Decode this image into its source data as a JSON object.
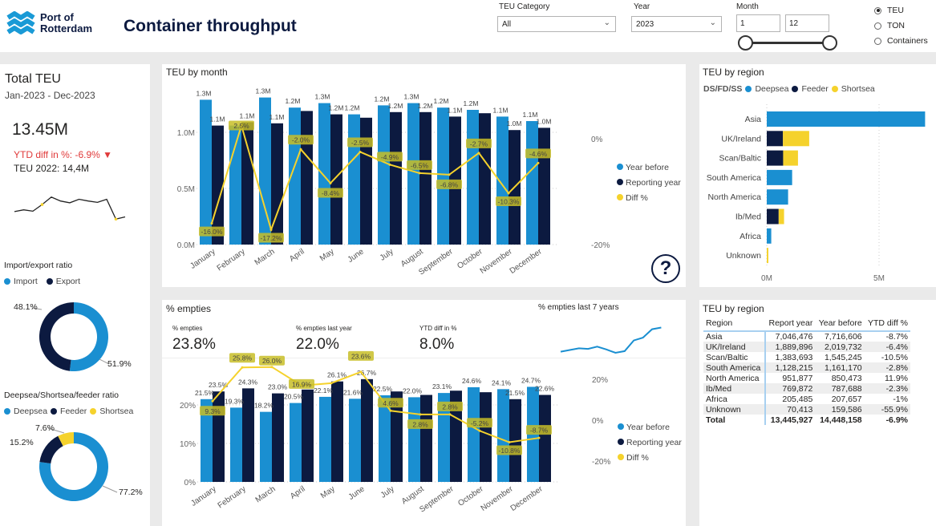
{
  "colors": {
    "year_before": "#1a8fd1",
    "reporting_year": "#0c1a40",
    "diff": "#f5d22c",
    "negative": "#e03a3a",
    "background": "#eaeaea"
  },
  "header": {
    "logo_text_1": "Port of",
    "logo_text_2": "Rotterdam",
    "title": "Container throughput"
  },
  "filters": {
    "teu_category": {
      "label": "TEU Category",
      "value": "All"
    },
    "year": {
      "label": "Year",
      "value": "2023"
    },
    "month": {
      "label": "Month",
      "from": "1",
      "to": "12",
      "range": [
        1,
        12
      ]
    },
    "measure": {
      "options": [
        "TEU",
        "TON",
        "Containers"
      ],
      "selected": "TEU"
    }
  },
  "kpi": {
    "title": "Total TEU",
    "period": "Jan-2023 - Dec-2023",
    "value": "13.45M",
    "ytd_diff": "YTD diff in %: -6.9% ▼",
    "prev_year": "TEU 2022: 14,4M",
    "sparkline": [
      0.62,
      0.66,
      0.63,
      0.78,
      0.95,
      0.86,
      0.82,
      0.9,
      0.86,
      0.83,
      0.9,
      0.45,
      0.5
    ]
  },
  "import_export": {
    "title": "Import/export ratio",
    "legend": [
      "Import",
      "Export"
    ],
    "values": [
      51.9,
      48.1
    ],
    "labels": [
      "51.9%",
      "48.1%"
    ]
  },
  "ds_ratio": {
    "title": "Deepsea/Shortsea/feeder ratio",
    "legend": [
      "Deepsea",
      "Feeder",
      "Shortsea"
    ],
    "values": [
      77.2,
      15.2,
      7.6
    ],
    "labels": [
      "77.2%",
      "15.2%",
      "7.6%"
    ]
  },
  "help_icon": "question-circle-icon",
  "teu_by_month": {
    "title": "TEU by month"
  },
  "empties": {
    "title": "% empties",
    "kpis": [
      {
        "label": "% empties",
        "value": "23.8%"
      },
      {
        "label": "% empties last year",
        "value": "22.0%"
      },
      {
        "label": "YTD diff in %",
        "value": "8.0%"
      }
    ],
    "spark_title": "% empties last 7 years",
    "spark": [
      19.5,
      19.8,
      20.1,
      20.0,
      20.4,
      19.9,
      19.3,
      19.6,
      21.5,
      22.0,
      23.5,
      23.8
    ]
  },
  "region_bar_title": "TEU by region",
  "region_table_title": "TEU by region",
  "chart_data": [
    {
      "type": "bar",
      "title": "TEU by month",
      "categories": [
        "January",
        "February",
        "March",
        "April",
        "May",
        "June",
        "July",
        "August",
        "September",
        "October",
        "November",
        "December"
      ],
      "yticks": [
        "0.0M",
        "0.5M",
        "1.0M"
      ],
      "ylim": [
        0,
        1.6
      ],
      "y2ticks": [
        "0%",
        "-20%"
      ],
      "y2lim": [
        -20,
        0
      ],
      "series": [
        {
          "name": "Year before",
          "values": [
            1.29,
            1.06,
            1.31,
            1.22,
            1.26,
            1.16,
            1.24,
            1.26,
            1.22,
            1.2,
            1.14,
            1.1
          ],
          "labels": [
            "1.3M",
            "",
            "1.3M",
            "1.2M",
            "1.3M",
            "1.2M",
            "1.2M",
            "1.3M",
            "1.2M",
            "1.2M",
            "1.1M",
            "1.1M"
          ]
        },
        {
          "name": "Reporting year",
          "values": [
            1.06,
            1.09,
            1.08,
            1.19,
            1.16,
            1.13,
            1.18,
            1.18,
            1.14,
            1.17,
            1.02,
            1.04
          ],
          "labels": [
            "1.1M",
            "1.1M",
            "1.1M",
            "",
            "1.2M",
            "",
            "1.2M",
            "1.2M",
            "1.1M",
            "",
            "1.0M",
            "1.0M"
          ]
        },
        {
          "name": "Diff %",
          "type": "line",
          "axis": "right",
          "values": [
            -16.0,
            2.5,
            -17.2,
            -2.0,
            -8.4,
            -2.5,
            -4.9,
            -6.5,
            -6.8,
            -2.7,
            -10.3,
            -4.6
          ],
          "labels": [
            "-16.0%",
            "2.5%",
            "-17.2%",
            "-2.0%",
            "-8.4%",
            "-2.5%",
            "-4.9%",
            "-6.5%",
            "-6.8%",
            "-2.7%",
            "-10.3%",
            "-4.6%"
          ]
        }
      ]
    },
    {
      "type": "bar",
      "title": "% empties",
      "categories": [
        "January",
        "February",
        "March",
        "April",
        "May",
        "June",
        "July",
        "August",
        "September",
        "October",
        "November",
        "December"
      ],
      "yticks": [
        "0%",
        "10%",
        "20%"
      ],
      "ylim": [
        0,
        28
      ],
      "y2ticks": [
        "-20%",
        "0%",
        "20%"
      ],
      "y2lim": [
        -30,
        30
      ],
      "series": [
        {
          "name": "Year before",
          "values": [
            21.5,
            19.3,
            18.2,
            20.5,
            22.1,
            21.6,
            22.5,
            22.0,
            23.1,
            24.6,
            24.1,
            24.7
          ],
          "labels": [
            "21.5%",
            "19.3%",
            "18.2%",
            "20.5%",
            "22.1%",
            "21.6%",
            "22.5%",
            "22.0%",
            "23.1%",
            "24.6%",
            "24.1%",
            "24.7%"
          ]
        },
        {
          "name": "Reporting year",
          "values": [
            23.5,
            24.3,
            23.0,
            24.0,
            26.1,
            26.7,
            23.5,
            22.6,
            23.7,
            23.3,
            21.5,
            22.6
          ],
          "labels": [
            "23.5%",
            "24.3%",
            "23.0%",
            "",
            "26.1%",
            "26.7%",
            "",
            "",
            "",
            "",
            "21.5%",
            "22.6%"
          ]
        },
        {
          "name": "Diff %",
          "type": "line",
          "axis": "right",
          "values": [
            9.3,
            25.8,
            26.0,
            16.9,
            18.1,
            23.6,
            4.6,
            2.8,
            2.8,
            -5.2,
            -10.8,
            -8.7
          ],
          "labels": [
            "9.3%",
            "25.8%",
            "26.0%",
            "16.9%",
            "",
            "23.6%",
            "4.6%",
            "2.8%",
            "2.8%",
            "-5.2%",
            "-10.8%",
            "-8.7%"
          ]
        }
      ]
    },
    {
      "type": "bar",
      "orientation": "horizontal",
      "stacked": true,
      "title": "TEU by region",
      "legend_title": "DS/FD/SS",
      "xticks": [
        "0M",
        "5M"
      ],
      "xlim": [
        0,
        7.05
      ],
      "categories": [
        "Asia",
        "UK/Ireland",
        "Scan/Baltic",
        "South America",
        "North America",
        "Ib/Med",
        "Africa",
        "Unknown"
      ],
      "series": [
        {
          "name": "Deepsea",
          "values": [
            7.05,
            0,
            0,
            1.13,
            0.95,
            0,
            0.2,
            0
          ]
        },
        {
          "name": "Feeder",
          "values": [
            0,
            0.72,
            0.73,
            0,
            0,
            0.53,
            0,
            0
          ]
        },
        {
          "name": "Shortsea",
          "values": [
            0,
            1.17,
            0.66,
            0,
            0,
            0.24,
            0,
            0.07
          ]
        }
      ]
    }
  ],
  "region_table": {
    "columns": [
      "Region",
      "Report year",
      "Year before",
      "YTD diff %"
    ],
    "rows": [
      [
        "Asia",
        "7,046,476",
        "7,716,606",
        "-8.7%"
      ],
      [
        "UK/Ireland",
        "1,889,896",
        "2,019,732",
        "-6.4%"
      ],
      [
        "Scan/Baltic",
        "1,383,693",
        "1,545,245",
        "-10.5%"
      ],
      [
        "South America",
        "1,128,215",
        "1,161,170",
        "-2.8%"
      ],
      [
        "North America",
        "951,877",
        "850,473",
        "11.9%"
      ],
      [
        "Ib/Med",
        "769,872",
        "787,688",
        "-2.3%"
      ],
      [
        "Africa",
        "205,485",
        "207,657",
        "-1%"
      ],
      [
        "Unknown",
        "70,413",
        "159,586",
        "-55.9%"
      ]
    ],
    "total": [
      "Total",
      "13,445,927",
      "14,448,158",
      "-6.9%"
    ]
  }
}
